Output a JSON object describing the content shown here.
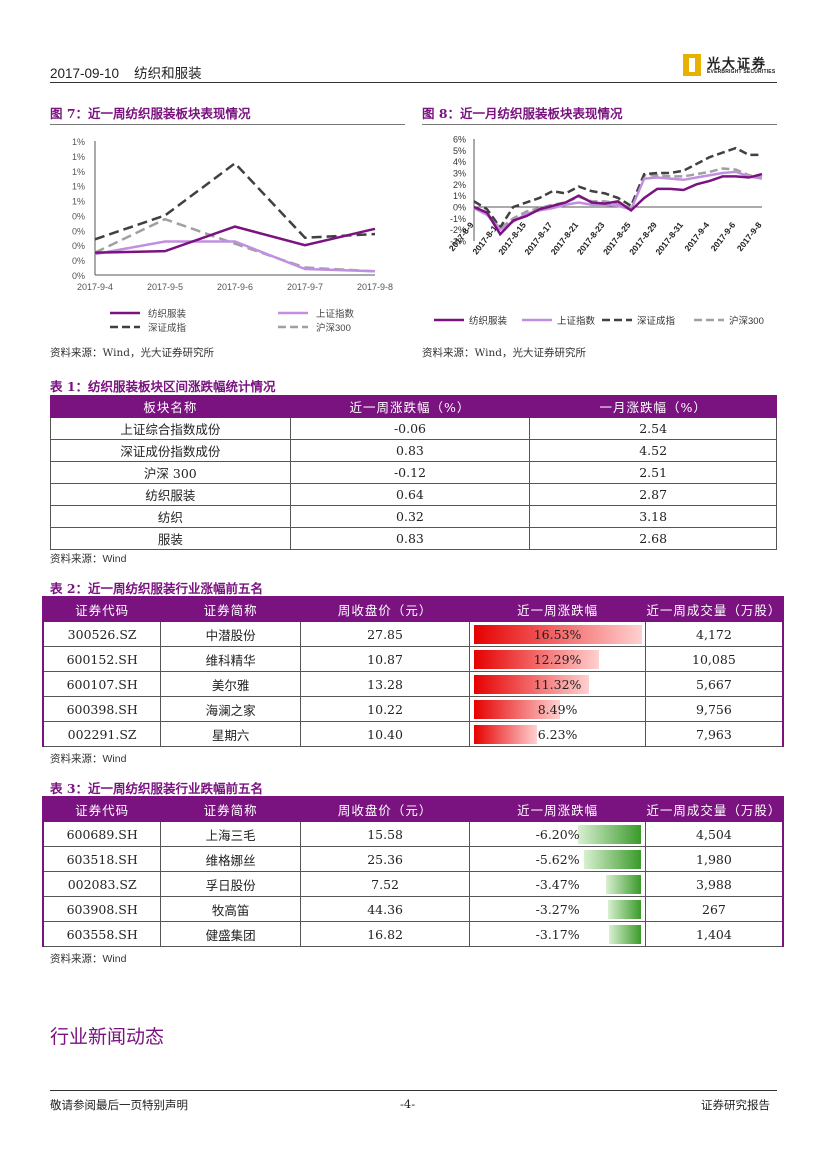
{
  "header": {
    "date": "2017-09-10",
    "section": "纺织和服装",
    "logo_cn": "光大证券",
    "logo_en": "EVERBRIGHT SECURITIES"
  },
  "fig7": {
    "title": "图 7：近一周纺织服装板块表现情况",
    "source": "资料来源：Wind，光大证券研究所",
    "chart_data": {
      "type": "line",
      "categories": [
        "2017-9-4",
        "2017-9-5",
        "2017-9-6",
        "2017-9-7",
        "2017-9-8"
      ],
      "y_tick_labels": [
        "1%",
        "1%",
        "1%",
        "1%",
        "1%",
        "0%",
        "0%",
        "0%",
        "0%",
        "0%"
      ],
      "ylim": [
        -0.3,
        1.5
      ],
      "series": [
        {
          "name": "纺织服装",
          "color": "#7a1380",
          "style": "solid",
          "values": [
            0.0,
            0.02,
            0.35,
            0.1,
            0.32
          ]
        },
        {
          "name": "上证指数",
          "color": "#c28fe0",
          "style": "solid",
          "values": [
            -0.02,
            0.15,
            0.15,
            -0.22,
            -0.25
          ]
        },
        {
          "name": "深证成指",
          "color": "#404040",
          "style": "dash",
          "values": [
            0.18,
            0.5,
            1.2,
            0.2,
            0.25
          ]
        },
        {
          "name": "沪深300",
          "color": "#a0a0a0",
          "style": "dash",
          "values": [
            0.0,
            0.45,
            0.12,
            -0.2,
            -0.25
          ]
        }
      ]
    }
  },
  "fig8": {
    "title": "图 8：近一月纺织服装板块表现情况",
    "source": "资料来源：Wind，光大证券研究所",
    "chart_data": {
      "type": "line",
      "categories": [
        "2017-8-9",
        "2017-8-11",
        "2017-8-15",
        "2017-8-17",
        "2017-8-21",
        "2017-8-23",
        "2017-8-25",
        "2017-8-29",
        "2017-8-31",
        "2017-9-4",
        "2017-9-6",
        "2017-9-8"
      ],
      "y_ticks": [
        "6%",
        "5%",
        "4%",
        "3%",
        "2%",
        "1%",
        "0%",
        "-1%",
        "-2%",
        "-3%"
      ],
      "ylim": [
        -3,
        6
      ],
      "x": [
        0,
        1,
        2,
        3,
        4,
        5,
        6,
        7,
        8,
        9,
        10,
        11,
        12,
        13,
        14,
        15,
        16,
        17,
        18,
        19,
        20,
        21,
        22
      ],
      "series": [
        {
          "name": "纺织服装",
          "color": "#7a1380",
          "style": "solid",
          "values": [
            0,
            -0.5,
            -2.4,
            -1.2,
            -0.8,
            -0.2,
            0.1,
            0.4,
            1.0,
            0.4,
            0.3,
            0.5,
            -0.3,
            0.8,
            1.6,
            1.6,
            1.5,
            2.0,
            2.3,
            2.7,
            2.7,
            2.6,
            2.9
          ]
        },
        {
          "name": "上证指数",
          "color": "#c28fe0",
          "style": "solid",
          "values": [
            -0.1,
            -0.7,
            -2.0,
            -1.3,
            -0.6,
            -0.3,
            -0.1,
            0.2,
            0.4,
            0.2,
            0.2,
            0.1,
            -0.2,
            2.5,
            2.6,
            2.5,
            2.4,
            2.6,
            2.8,
            3.0,
            3.1,
            2.7,
            2.5
          ]
        },
        {
          "name": "深证成指",
          "color": "#404040",
          "style": "dash",
          "values": [
            0.5,
            -0.2,
            -1.8,
            0.0,
            0.4,
            0.8,
            1.4,
            1.2,
            1.8,
            1.4,
            1.2,
            0.8,
            0.1,
            2.9,
            3.0,
            3.0,
            3.2,
            3.8,
            4.4,
            4.8,
            5.2,
            4.6,
            4.6
          ]
        },
        {
          "name": "沪深300",
          "color": "#a0a0a0",
          "style": "dash",
          "values": [
            0,
            -0.6,
            -1.9,
            -1.0,
            -0.4,
            -0.1,
            0.2,
            0.4,
            0.9,
            0.5,
            0.5,
            0.3,
            -0.1,
            2.8,
            2.8,
            2.7,
            2.7,
            2.9,
            3.1,
            3.4,
            3.3,
            2.8,
            2.6
          ]
        }
      ]
    }
  },
  "table1": {
    "title": "表 1：纺织服装板块区间涨跌幅统计情况",
    "headers": [
      "板块名称",
      "近一周涨跌幅（%）",
      "一月涨跌幅（%）"
    ],
    "rows": [
      [
        "上证综合指数成份",
        "-0.06",
        "2.54"
      ],
      [
        "深证成份指数成份",
        "0.83",
        "4.52"
      ],
      [
        "沪深 300",
        "-0.12",
        "2.51"
      ],
      [
        "纺织服装",
        "0.64",
        "2.87"
      ],
      [
        "纺织",
        "0.32",
        "3.18"
      ],
      [
        "服装",
        "0.83",
        "2.68"
      ]
    ],
    "source": "资料来源：Wind"
  },
  "table2": {
    "title": "表 2：近一周纺织服装行业涨幅前五名",
    "headers": [
      "证券代码",
      "证券简称",
      "周收盘价（元）",
      "近一周涨跌幅",
      "近一周成交量（万股）"
    ],
    "rows": [
      [
        "300526.SZ",
        "中潜股份",
        "27.85",
        "16.53%",
        "4,172"
      ],
      [
        "600152.SH",
        "维科精华",
        "10.87",
        "12.29%",
        "10,085"
      ],
      [
        "600107.SH",
        "美尔雅",
        "13.28",
        "11.32%",
        "5,667"
      ],
      [
        "600398.SH",
        "海澜之家",
        "10.22",
        "8.49%",
        "9,756"
      ],
      [
        "002291.SZ",
        "星期六",
        "10.40",
        "6.23%",
        "7,963"
      ]
    ],
    "change_values": [
      16.53,
      12.29,
      11.32,
      8.49,
      6.23
    ],
    "bar_max": 16.53,
    "source": "资料来源：Wind"
  },
  "table3": {
    "title": "表 3：近一周纺织服装行业跌幅前五名",
    "headers": [
      "证券代码",
      "证券简称",
      "周收盘价（元）",
      "近一周涨跌幅",
      "近一周成交量（万股）"
    ],
    "rows": [
      [
        "600689.SH",
        "上海三毛",
        "15.58",
        "-6.20%",
        "4,504"
      ],
      [
        "603518.SH",
        "维格娜丝",
        "25.36",
        "-5.62%",
        "1,980"
      ],
      [
        "002083.SZ",
        "孚日股份",
        "7.52",
        "-3.47%",
        "3,988"
      ],
      [
        "603908.SH",
        "牧高笛",
        "44.36",
        "-3.27%",
        "267"
      ],
      [
        "603558.SH",
        "健盛集团",
        "16.82",
        "-3.17%",
        "1,404"
      ]
    ],
    "change_values": [
      -6.2,
      -5.62,
      -3.47,
      -3.27,
      -3.17
    ],
    "bar_max": 16.53,
    "source": "资料来源：Wind"
  },
  "news_heading": "行业新闻动态",
  "footer": {
    "left": "敬请参阅最后一页特别声明",
    "center": "-4-",
    "right": "证券研究报告"
  }
}
